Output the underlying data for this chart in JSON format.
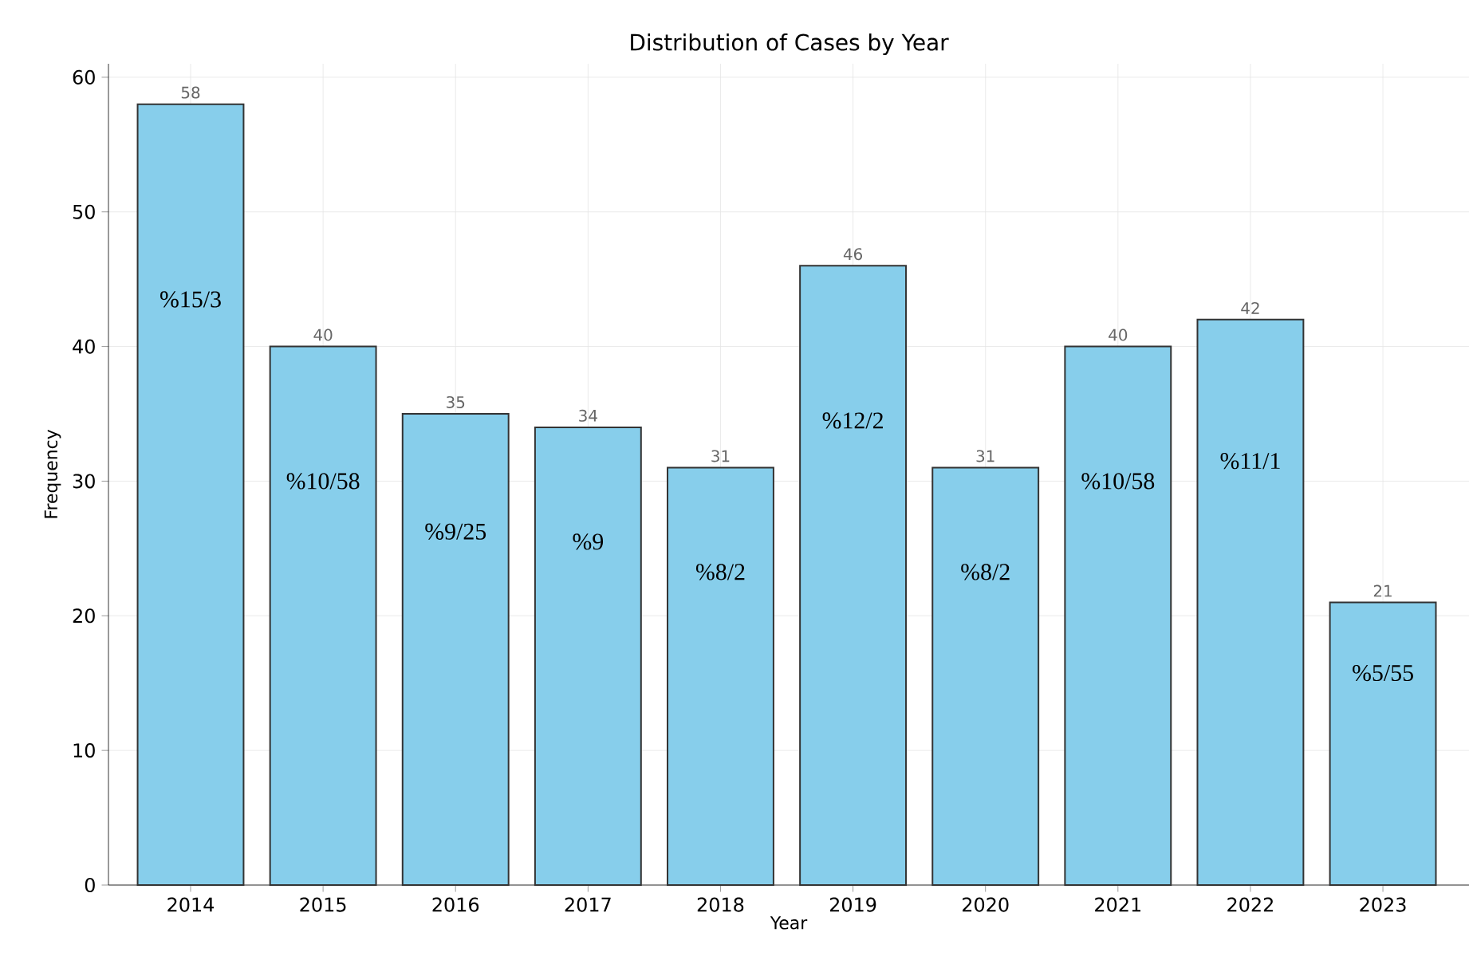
{
  "chart_data": {
    "type": "bar",
    "title": "Distribution of Cases by Year",
    "xlabel": "Year",
    "ylabel": "Frequency",
    "categories": [
      "2014",
      "2015",
      "2016",
      "2017",
      "2018",
      "2019",
      "2020",
      "2021",
      "2022",
      "2023"
    ],
    "values": [
      58,
      40,
      35,
      34,
      31,
      46,
      31,
      40,
      42,
      21
    ],
    "color": "#87ceeb",
    "data_labels": true,
    "grid": true,
    "ylim": [
      0,
      61
    ],
    "yticks": [
      0,
      10,
      20,
      30,
      40,
      50,
      60
    ],
    "annotations": [
      "%15/3",
      "%10/58",
      "%9/25",
      "%9",
      "%8/2",
      "%12/2",
      "%8/2",
      "%10/58",
      "%11/1",
      "%5/55"
    ]
  }
}
